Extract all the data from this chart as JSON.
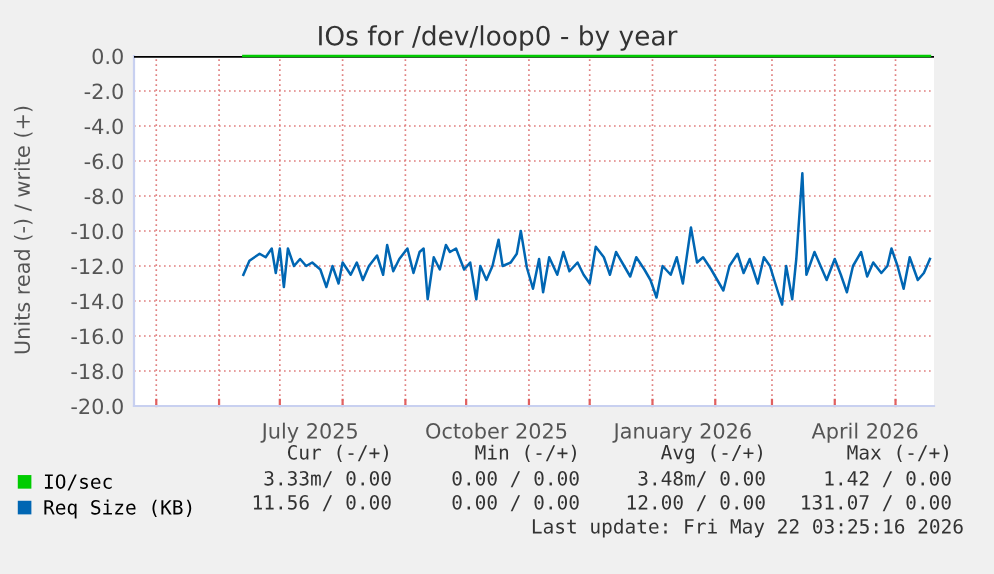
{
  "chart_data": {
    "type": "line",
    "title": "IOs for /dev/loop0 - by year",
    "ylabel": "Units read (-) / write (+)",
    "xlim": [
      "2025-04-20",
      "2026-05-20"
    ],
    "ylim": [
      -20,
      0
    ],
    "yticks": [
      {
        "value": 0,
        "label": "0.0"
      },
      {
        "value": -2,
        "label": "-2.0"
      },
      {
        "value": -4,
        "label": "-4.0"
      },
      {
        "value": -6,
        "label": "-6.0"
      },
      {
        "value": -8,
        "label": "-8.0"
      },
      {
        "value": -10,
        "label": "-10.0"
      },
      {
        "value": -12,
        "label": "-12.0"
      },
      {
        "value": -14,
        "label": "-14.0"
      },
      {
        "value": -16,
        "label": "-16.0"
      },
      {
        "value": -18,
        "label": "-18.0"
      },
      {
        "value": -20,
        "label": "-20.0"
      }
    ],
    "xticks": [
      {
        "value": "2025-05-01",
        "label": null
      },
      {
        "value": "2025-06-01",
        "label": null
      },
      {
        "value": "2025-07-01",
        "label": null
      },
      {
        "value": "2025-07-16",
        "label": "July 2025"
      },
      {
        "value": "2025-08-01",
        "label": null
      },
      {
        "value": "2025-09-01",
        "label": null
      },
      {
        "value": "2025-10-01",
        "label": null
      },
      {
        "value": "2025-10-16",
        "label": "October 2025"
      },
      {
        "value": "2025-11-01",
        "label": null
      },
      {
        "value": "2025-12-01",
        "label": null
      },
      {
        "value": "2026-01-01",
        "label": null
      },
      {
        "value": "2026-01-16",
        "label": "January 2026"
      },
      {
        "value": "2026-02-01",
        "label": null
      },
      {
        "value": "2026-03-01",
        "label": null
      },
      {
        "value": "2026-04-01",
        "label": null
      },
      {
        "value": "2026-04-16",
        "label": "April 2026"
      },
      {
        "value": "2026-05-01",
        "label": null
      }
    ],
    "grid": true,
    "legend": "bottom left",
    "series": [
      {
        "name": "IO/sec",
        "color": "#00cc00",
        "x": [
          "2025-06-13",
          "2026-05-18"
        ],
        "values": [
          0,
          0
        ]
      },
      {
        "name": "Req Size (KB)",
        "color": "#0066b3",
        "x": [
          "2025-06-13",
          "2025-06-16",
          "2025-06-21",
          "2025-06-24",
          "2025-06-27",
          "2025-06-29",
          "2025-07-01",
          "2025-07-03",
          "2025-07-05",
          "2025-07-08",
          "2025-07-11",
          "2025-07-14",
          "2025-07-17",
          "2025-07-21",
          "2025-07-24",
          "2025-07-27",
          "2025-07-30",
          "2025-08-01",
          "2025-08-05",
          "2025-08-08",
          "2025-08-11",
          "2025-08-14",
          "2025-08-18",
          "2025-08-21",
          "2025-08-23",
          "2025-08-26",
          "2025-08-29",
          "2025-09-02",
          "2025-09-05",
          "2025-09-08",
          "2025-09-10",
          "2025-09-12",
          "2025-09-15",
          "2025-09-18",
          "2025-09-21",
          "2025-09-23",
          "2025-09-26",
          "2025-09-30",
          "2025-10-03",
          "2025-10-06",
          "2025-10-08",
          "2025-10-11",
          "2025-10-14",
          "2025-10-17",
          "2025-10-19",
          "2025-10-23",
          "2025-10-26",
          "2025-10-28",
          "2025-10-31",
          "2025-11-03",
          "2025-11-06",
          "2025-11-08",
          "2025-11-11",
          "2025-11-15",
          "2025-11-18",
          "2025-11-21",
          "2025-11-25",
          "2025-11-28",
          "2025-12-01",
          "2025-12-04",
          "2025-12-08",
          "2025-12-11",
          "2025-12-14",
          "2025-12-18",
          "2025-12-21",
          "2025-12-24",
          "2025-12-28",
          "2025-12-31",
          "2026-01-03",
          "2026-01-06",
          "2026-01-10",
          "2026-01-13",
          "2026-01-16",
          "2026-01-20",
          "2026-01-23",
          "2026-01-26",
          "2026-01-30",
          "2026-02-02",
          "2026-02-05",
          "2026-02-08",
          "2026-02-12",
          "2026-02-15",
          "2026-02-18",
          "2026-02-22",
          "2026-02-25",
          "2026-02-28",
          "2026-03-04",
          "2026-03-06",
          "2026-03-08",
          "2026-03-11",
          "2026-03-13",
          "2026-03-16",
          "2026-03-18",
          "2026-03-22",
          "2026-03-25",
          "2026-03-28",
          "2026-04-01",
          "2026-04-04",
          "2026-04-07",
          "2026-04-10",
          "2026-04-14",
          "2026-04-17",
          "2026-04-20",
          "2026-04-24",
          "2026-04-27",
          "2026-04-29",
          "2026-05-02",
          "2026-05-05",
          "2026-05-08",
          "2026-05-12",
          "2026-05-15",
          "2026-05-18"
        ],
        "values": [
          -12.5,
          -11.7,
          -11.3,
          -11.5,
          -11.0,
          -12.4,
          -11.0,
          -13.2,
          -11.0,
          -12.0,
          -11.6,
          -12.0,
          -11.8,
          -12.2,
          -13.2,
          -12.0,
          -13.0,
          -11.8,
          -12.5,
          -11.8,
          -12.8,
          -12.0,
          -11.4,
          -12.5,
          -10.8,
          -12.3,
          -11.6,
          -11.0,
          -12.4,
          -11.2,
          -11.0,
          -13.9,
          -11.5,
          -12.2,
          -10.8,
          -11.2,
          -11.0,
          -12.2,
          -11.8,
          -13.9,
          -12.0,
          -12.8,
          -12.0,
          -10.5,
          -12.0,
          -11.8,
          -11.3,
          -10.0,
          -12.1,
          -13.3,
          -11.6,
          -13.5,
          -11.5,
          -12.5,
          -11.2,
          -12.3,
          -11.8,
          -12.5,
          -13.0,
          -10.9,
          -11.5,
          -12.5,
          -11.2,
          -12.0,
          -12.6,
          -11.5,
          -12.2,
          -12.8,
          -13.8,
          -12.0,
          -12.5,
          -11.5,
          -13.0,
          -9.8,
          -11.8,
          -11.5,
          -12.2,
          -12.8,
          -13.4,
          -12.0,
          -11.3,
          -12.4,
          -11.6,
          -13.0,
          -11.5,
          -12.0,
          -13.5,
          -14.2,
          -12.0,
          -13.9,
          -11.6,
          -6.7,
          -12.5,
          -11.2,
          -12.0,
          -12.8,
          -11.6,
          -12.5,
          -13.5,
          -12.0,
          -11.2,
          -12.6,
          -11.8,
          -12.4,
          -12.0,
          -11.0,
          -12.0,
          -13.3,
          -11.5,
          -12.8,
          -12.4,
          -11.6
        ]
      }
    ],
    "annotations": [
      "Cur (-/+)",
      "Min (-/+)",
      "Avg (-/+)",
      "Max (-/+)",
      "3.33m/ 0.00",
      "0.00 / 0.00",
      "3.48m/ 0.00",
      "1.42 / 0.00",
      "11.56 / 0.00",
      "0.00 / 0.00",
      "12.00 / 0.00",
      "131.07 / 0.00",
      "Last update: Fri May 22 03:25:16 2026"
    ]
  }
}
